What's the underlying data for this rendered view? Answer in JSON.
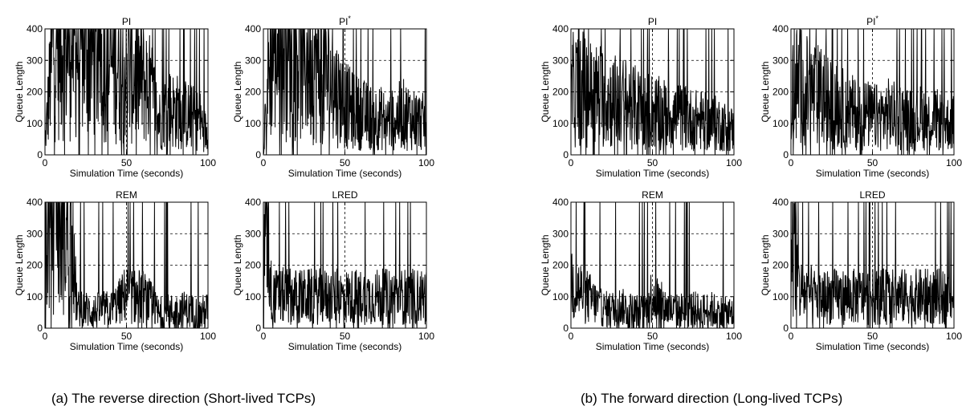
{
  "captions": {
    "a": "(a) The reverse direction (Short-lived TCPs)",
    "b": "(b) The forward direction (Long-lived TCPs)"
  },
  "colors": {
    "trace": "#000000",
    "grid": "#000000",
    "background": "#ffffff"
  },
  "chart_data": [
    {
      "type": "line",
      "group": "a",
      "title": "PI",
      "title_sup": "",
      "xlabel": "Simulation Time (seconds)",
      "ylabel": "Queue Length",
      "xlim": [
        0,
        100
      ],
      "ylim": [
        0,
        400
      ],
      "xticks": [
        0,
        50,
        100
      ],
      "yticks": [
        0,
        100,
        200,
        300,
        400
      ],
      "grid": true,
      "series": [
        {
          "x": [
            0,
            5,
            10,
            15,
            20,
            25,
            30,
            35,
            40,
            45,
            50,
            55,
            60,
            65,
            70,
            75,
            80,
            85,
            90,
            95,
            100
          ],
          "values": [
            30,
            360,
            380,
            370,
            360,
            350,
            340,
            330,
            290,
            300,
            260,
            260,
            240,
            200,
            110,
            150,
            140,
            130,
            120,
            110,
            60
          ]
        }
      ]
    },
    {
      "type": "line",
      "group": "a",
      "title": "PI",
      "title_sup": "*",
      "xlabel": "Simulation Time (seconds)",
      "ylabel": "Queue Length",
      "xlim": [
        0,
        100
      ],
      "ylim": [
        0,
        400
      ],
      "xticks": [
        0,
        50,
        100
      ],
      "yticks": [
        0,
        100,
        200,
        300,
        400
      ],
      "grid": true,
      "series": [
        {
          "x": [
            0,
            5,
            10,
            15,
            20,
            25,
            30,
            35,
            40,
            45,
            50,
            55,
            60,
            65,
            70,
            75,
            80,
            85,
            90,
            95,
            100
          ],
          "values": [
            50,
            360,
            370,
            350,
            340,
            320,
            300,
            270,
            240,
            200,
            160,
            140,
            130,
            120,
            120,
            110,
            110,
            130,
            120,
            110,
            100
          ]
        }
      ]
    },
    {
      "type": "line",
      "group": "a",
      "title": "REM",
      "title_sup": "",
      "xlabel": "Simulation Time (seconds)",
      "ylabel": "Queue Length",
      "xlim": [
        0,
        100
      ],
      "ylim": [
        0,
        400
      ],
      "xticks": [
        0,
        50,
        100
      ],
      "yticks": [
        0,
        100,
        200,
        300,
        400
      ],
      "grid": true,
      "series": [
        {
          "x": [
            0,
            5,
            10,
            15,
            20,
            25,
            30,
            35,
            40,
            45,
            50,
            55,
            60,
            65,
            70,
            75,
            80,
            85,
            90,
            95,
            100
          ],
          "values": [
            250,
            370,
            340,
            320,
            60,
            60,
            50,
            60,
            60,
            80,
            110,
            100,
            100,
            80,
            40,
            50,
            50,
            60,
            50,
            40,
            60
          ]
        }
      ]
    },
    {
      "type": "line",
      "group": "a",
      "title": "LRED",
      "title_sup": "",
      "xlabel": "Simulation Time (seconds)",
      "ylabel": "Queue Length",
      "xlim": [
        0,
        100
      ],
      "ylim": [
        0,
        400
      ],
      "xticks": [
        0,
        50,
        100
      ],
      "yticks": [
        0,
        100,
        200,
        300,
        400
      ],
      "grid": true,
      "series": [
        {
          "x": [
            0,
            2,
            5,
            10,
            15,
            20,
            25,
            30,
            35,
            40,
            45,
            50,
            55,
            60,
            65,
            70,
            75,
            80,
            85,
            90,
            95,
            100
          ],
          "values": [
            150,
            380,
            100,
            100,
            105,
            100,
            100,
            100,
            100,
            100,
            100,
            100,
            100,
            100,
            100,
            100,
            100,
            100,
            100,
            100,
            100,
            100
          ]
        }
      ]
    },
    {
      "type": "line",
      "group": "b",
      "title": "PI",
      "title_sup": "",
      "xlabel": "Simulation Time (seconds)",
      "ylabel": "Queue Length",
      "xlim": [
        0,
        100
      ],
      "ylim": [
        0,
        400
      ],
      "xticks": [
        0,
        50,
        100
      ],
      "yticks": [
        0,
        100,
        200,
        300,
        400
      ],
      "grid": true,
      "series": [
        {
          "x": [
            0,
            5,
            10,
            15,
            20,
            25,
            30,
            35,
            40,
            45,
            50,
            55,
            60,
            65,
            70,
            75,
            80,
            85,
            90,
            95,
            100
          ],
          "values": [
            200,
            220,
            200,
            190,
            190,
            170,
            170,
            160,
            150,
            140,
            140,
            130,
            130,
            120,
            120,
            110,
            110,
            100,
            100,
            90,
            80
          ]
        }
      ]
    },
    {
      "type": "line",
      "group": "b",
      "title": "PI",
      "title_sup": "*",
      "xlabel": "Simulation Time (seconds)",
      "ylabel": "Queue Length",
      "xlim": [
        0,
        100
      ],
      "ylim": [
        0,
        400
      ],
      "xticks": [
        0,
        50,
        100
      ],
      "yticks": [
        0,
        100,
        200,
        300,
        400
      ],
      "grid": true,
      "series": [
        {
          "x": [
            0,
            5,
            10,
            15,
            20,
            25,
            30,
            35,
            40,
            45,
            50,
            55,
            60,
            65,
            70,
            75,
            80,
            85,
            90,
            95,
            100
          ],
          "values": [
            200,
            230,
            200,
            190,
            180,
            160,
            150,
            140,
            130,
            130,
            120,
            120,
            130,
            120,
            120,
            110,
            120,
            110,
            110,
            100,
            100
          ]
        }
      ]
    },
    {
      "type": "line",
      "group": "b",
      "title": "REM",
      "title_sup": "",
      "xlabel": "Simulation Time (seconds)",
      "ylabel": "Queue Length",
      "xlim": [
        0,
        100
      ],
      "ylim": [
        0,
        400
      ],
      "xticks": [
        0,
        50,
        100
      ],
      "yticks": [
        0,
        100,
        200,
        300,
        400
      ],
      "grid": true,
      "series": [
        {
          "x": [
            0,
            5,
            10,
            15,
            20,
            25,
            30,
            35,
            40,
            45,
            50,
            55,
            60,
            65,
            70,
            75,
            80,
            85,
            90,
            95,
            100
          ],
          "values": [
            150,
            120,
            100,
            80,
            60,
            60,
            70,
            60,
            50,
            50,
            110,
            80,
            60,
            50,
            60,
            60,
            50,
            60,
            50,
            40,
            50
          ]
        }
      ]
    },
    {
      "type": "line",
      "group": "b",
      "title": "LRED",
      "title_sup": "",
      "xlabel": "Simulation Time (seconds)",
      "ylabel": "Queue Length",
      "xlim": [
        0,
        100
      ],
      "ylim": [
        0,
        400
      ],
      "xticks": [
        0,
        50,
        100
      ],
      "yticks": [
        0,
        100,
        200,
        300,
        400
      ],
      "grid": true,
      "series": [
        {
          "x": [
            0,
            2,
            5,
            10,
            15,
            20,
            25,
            30,
            35,
            40,
            45,
            50,
            55,
            60,
            65,
            70,
            75,
            80,
            85,
            90,
            95,
            100
          ],
          "values": [
            150,
            330,
            120,
            110,
            100,
            100,
            100,
            100,
            100,
            100,
            100,
            100,
            100,
            100,
            100,
            100,
            100,
            100,
            100,
            100,
            100,
            100
          ]
        }
      ]
    }
  ]
}
